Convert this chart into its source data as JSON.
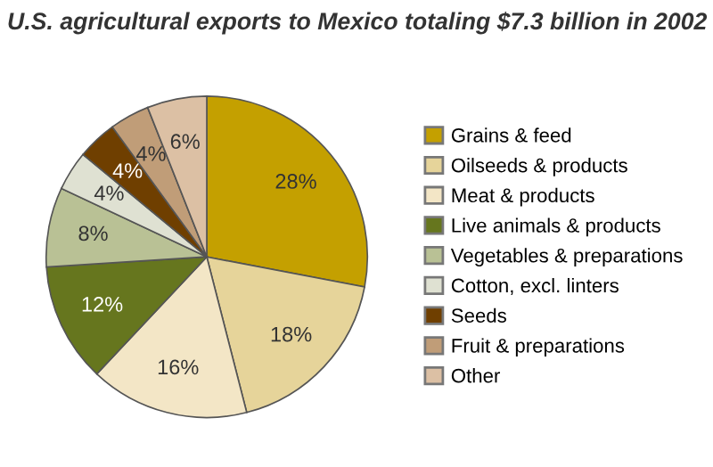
{
  "chart_data": {
    "type": "pie",
    "title": "U.S. agricultural exports to Mexico totaling $7.3 billion in 2002",
    "categories": [
      "Grains & feed",
      "Oilseeds & products",
      "Meat & products",
      "Live animals & products",
      "Vegetables & preparations",
      "Cotton, excl. linters",
      "Seeds",
      "Fruit & preparations",
      "Other"
    ],
    "values": [
      28,
      18,
      16,
      12,
      8,
      4,
      4,
      4,
      6
    ],
    "colors": [
      "#c4a000",
      "#e6d49a",
      "#f3e6c6",
      "#66761e",
      "#b9c195",
      "#dfe1d2",
      "#6f3f00",
      "#c09d78",
      "#dcc0a4"
    ],
    "value_labels": [
      "28%",
      "18%",
      "16%",
      "12%",
      "8%",
      "4%",
      "4%",
      "4%",
      "6%"
    ],
    "legend": "right"
  }
}
